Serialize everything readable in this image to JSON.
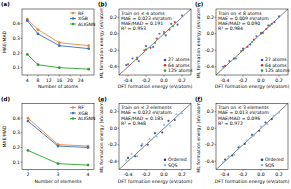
{
  "chart_data": [
    {
      "type": "line",
      "title": "(a)",
      "x_label": "Number of atoms",
      "y_label": "MAE/MAD",
      "x": [
        4,
        8,
        16,
        27
      ],
      "xlim": [
        2,
        29
      ],
      "xticks": [
        4,
        8,
        12,
        16,
        20,
        24
      ],
      "ylim": [
        0.05,
        0.5
      ],
      "yticks": [
        0.1,
        0.2,
        0.3,
        0.4
      ],
      "legend": "upper right",
      "series": [
        {
          "name": "RF",
          "color": "#e8883a",
          "marker": "circle",
          "values": [
            0.43,
            0.36,
            0.27,
            0.25
          ]
        },
        {
          "name": "XGB",
          "color": "#3b6fb6",
          "marker": "circle",
          "values": [
            0.42,
            0.33,
            0.25,
            0.23
          ]
        },
        {
          "name": "ALIGNN",
          "color": "#2ca02c",
          "marker": "circle",
          "values": [
            0.19,
            0.12,
            0.1,
            0.09
          ]
        }
      ]
    },
    {
      "type": "scatter",
      "title": "(b)",
      "x_label": "DFT formation energy (eV/atom)",
      "y_label": "ML formation energy (eV/atom)",
      "annotations": [
        "Train on ≤ 4 atoms",
        "MAE = 0.023 eV/atom",
        "MAE/MAD = 0.191",
        "R² = 0.953"
      ],
      "xlim": [
        -0.5,
        0.3
      ],
      "ylim": [
        -0.5,
        0.3
      ],
      "xticks": [
        -0.4,
        -0.2,
        {
          "value": 0,
          "label": "0.0"
        },
        0.2
      ],
      "yticks": [
        -0.4,
        -0.2,
        {
          "value": 0,
          "label": "0.0"
        },
        0.2
      ],
      "legend": "lower right",
      "series": [
        {
          "name": "27 atoms",
          "color": "#2b50d8",
          "x": [
            -0.42,
            -0.35,
            -0.28,
            -0.2,
            -0.12,
            -0.05,
            0.02,
            0.08,
            0.15,
            0.2
          ],
          "values": [
            -0.38,
            -0.3,
            -0.33,
            -0.15,
            -0.16,
            0.0,
            -0.02,
            0.12,
            0.11,
            0.22
          ]
        },
        {
          "name": "64 atoms",
          "color": "#d62728",
          "x": [
            -0.4,
            -0.3,
            -0.22,
            -0.15,
            -0.08,
            0.0,
            0.06,
            0.12
          ],
          "values": [
            -0.37,
            -0.31,
            -0.2,
            -0.17,
            -0.06,
            0.02,
            0.05,
            0.14
          ]
        },
        {
          "name": "125 atoms",
          "color": "#2ca02c",
          "x": [
            -0.3,
            -0.2,
            -0.1,
            0.0,
            0.1
          ],
          "values": [
            -0.29,
            -0.19,
            -0.11,
            0.0,
            0.09
          ]
        }
      ]
    },
    {
      "type": "scatter",
      "title": "(c)",
      "x_label": "DFT formation energy (eV/atom)",
      "y_label": "ML formation energy (eV/atom)",
      "annotations": [
        "Train on ≤ 8 atoms",
        "MAE = 0.009 eV/atom",
        "MAE/MAD = 0.090",
        "R² = 0.984"
      ],
      "xlim": [
        -0.5,
        0.3
      ],
      "ylim": [
        -0.5,
        0.3
      ],
      "xticks": [
        -0.4,
        -0.2,
        {
          "value": 0,
          "label": "0.0"
        },
        0.2
      ],
      "yticks": [
        -0.4,
        -0.2,
        {
          "value": 0,
          "label": "0.0"
        },
        0.2
      ],
      "legend": "lower right",
      "series": [
        {
          "name": "27 atoms",
          "color": "#2b50d8",
          "x": [
            -0.42,
            -0.35,
            -0.28,
            -0.2,
            -0.12,
            -0.05,
            0.02,
            0.08,
            0.15,
            0.2
          ],
          "values": [
            -0.4,
            -0.33,
            -0.3,
            -0.18,
            -0.13,
            -0.03,
            0.01,
            0.1,
            0.14,
            0.21
          ]
        },
        {
          "name": "64 atoms",
          "color": "#d62728",
          "x": [
            -0.4,
            -0.3,
            -0.22,
            -0.15,
            -0.08,
            0.0,
            0.06,
            0.12
          ],
          "values": [
            -0.39,
            -0.3,
            -0.21,
            -0.16,
            -0.07,
            0.01,
            0.06,
            0.12
          ]
        },
        {
          "name": "125 atoms",
          "color": "#2ca02c",
          "x": [
            -0.3,
            -0.2,
            -0.1,
            0.0,
            0.1
          ],
          "values": [
            -0.3,
            -0.2,
            -0.1,
            0.0,
            0.1
          ]
        }
      ]
    },
    {
      "type": "line",
      "title": "(d)",
      "x_label": "Number of elements",
      "y_label": "MAE/MAD",
      "x": [
        2,
        3,
        4
      ],
      "xlim": [
        1.8,
        4.2
      ],
      "xticks": [
        2,
        3,
        4
      ],
      "ylim": [
        0.05,
        0.5
      ],
      "yticks": [
        0.1,
        0.2,
        0.3,
        0.4
      ],
      "legend": "upper right",
      "series": [
        {
          "name": "RF",
          "color": "#e8883a",
          "marker": "circle",
          "values": [
            0.4,
            0.22,
            0.21
          ]
        },
        {
          "name": "XGB",
          "color": "#3b6fb6",
          "marker": "circle",
          "values": [
            0.38,
            0.21,
            0.2
          ]
        },
        {
          "name": "ALIGNN",
          "color": "#2ca02c",
          "marker": "circle",
          "values": [
            0.18,
            0.09,
            0.08
          ]
        }
      ]
    },
    {
      "type": "scatter",
      "title": "(e)",
      "x_label": "DFT formation energy (eV/atom)",
      "y_label": "ML formation energy (eV/atom)",
      "annotations": [
        "Train on ≤ 2 elements",
        "MAE = 0.022 eV/atom",
        "MAE/MAD = 0.185",
        "R² = 0.948"
      ],
      "xlim": [
        -0.5,
        0.3
      ],
      "ylim": [
        -0.5,
        0.3
      ],
      "xticks": [
        -0.4,
        -0.2,
        {
          "value": 0,
          "label": "0.0"
        },
        0.2
      ],
      "yticks": [
        -0.4,
        -0.2,
        {
          "value": 0,
          "label": "0.0"
        },
        0.2
      ],
      "legend": "lower right",
      "series": [
        {
          "name": "Ordered",
          "color": "#1f3f8f",
          "x": [
            -0.4,
            -0.32,
            -0.25,
            -0.18,
            -0.1,
            -0.02,
            0.05,
            0.12
          ],
          "values": [
            -0.36,
            -0.34,
            -0.21,
            -0.2,
            -0.06,
            -0.05,
            0.09,
            0.1
          ]
        },
        {
          "name": "SQS",
          "color": "#7fb8e6",
          "x": [
            -0.42,
            -0.36,
            -0.3,
            -0.24,
            -0.16,
            -0.08,
            0.0,
            0.07,
            0.14,
            0.2
          ],
          "values": [
            -0.39,
            -0.31,
            -0.34,
            -0.19,
            -0.13,
            -0.1,
            0.04,
            0.03,
            0.17,
            0.18
          ]
        }
      ]
    },
    {
      "type": "scatter",
      "title": "(f)",
      "x_label": "DFT formation energy (eV/atom)",
      "y_label": "ML formation energy (eV/atom)",
      "annotations": [
        "Train on ≤ 3 elements",
        "MAE = 0.013 eV/atom",
        "MAE/MAD = 0.096",
        "R² = 0.972"
      ],
      "xlim": [
        -0.5,
        0.3
      ],
      "ylim": [
        -0.5,
        0.3
      ],
      "xticks": [
        -0.4,
        -0.2,
        {
          "value": 0,
          "label": "0.0"
        },
        0.2
      ],
      "yticks": [
        -0.4,
        -0.2,
        {
          "value": 0,
          "label": "0.0"
        },
        0.2
      ],
      "legend": "lower right",
      "series": [
        {
          "name": "Ordered",
          "color": "#1f3f8f",
          "x": [
            -0.4,
            -0.32,
            -0.25,
            -0.18,
            -0.1,
            -0.02,
            0.05,
            0.12
          ],
          "values": [
            -0.38,
            -0.33,
            -0.23,
            -0.19,
            -0.08,
            -0.03,
            0.07,
            0.11
          ]
        },
        {
          "name": "SQS",
          "color": "#7fb8e6",
          "x": [
            -0.42,
            -0.36,
            -0.3,
            -0.24,
            -0.16,
            -0.08,
            0.0,
            0.07,
            0.14,
            0.2
          ],
          "values": [
            -0.41,
            -0.34,
            -0.32,
            -0.22,
            -0.15,
            -0.09,
            0.02,
            0.05,
            0.15,
            0.19
          ]
        }
      ]
    }
  ]
}
